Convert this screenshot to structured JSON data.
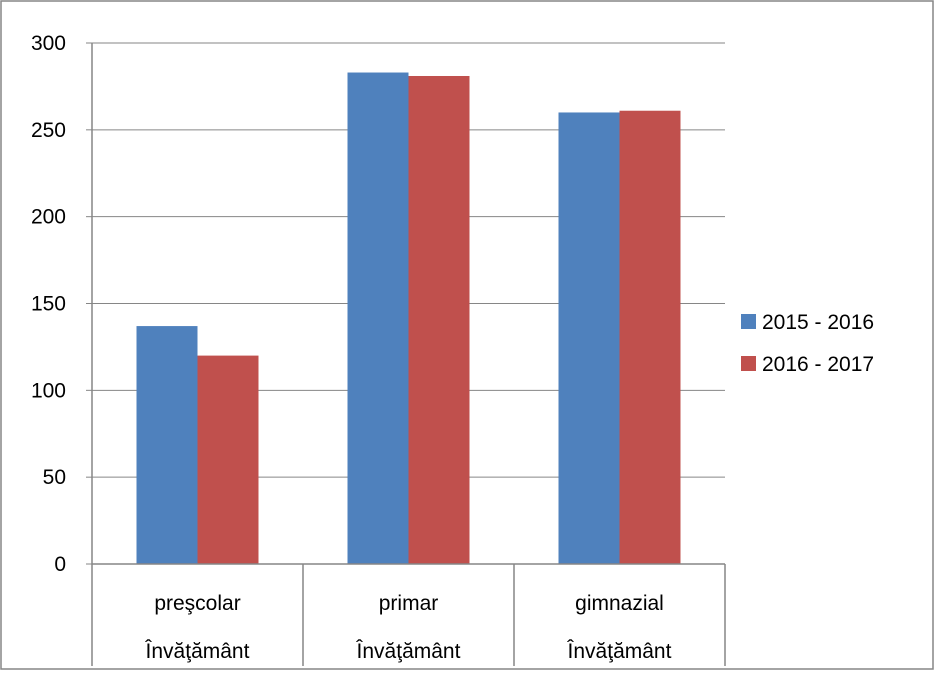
{
  "chart_data": {
    "type": "bar",
    "title": "",
    "xlabel": "",
    "ylabel": "",
    "categories": [
      {
        "label": "preşcolar",
        "group": "Învăţământ"
      },
      {
        "label": "primar",
        "group": "Învăţământ"
      },
      {
        "label": "gimnazial",
        "group": "Învăţământ"
      }
    ],
    "series": [
      {
        "name": "2015 - 2016",
        "color": "#4f81bd",
        "values": [
          137,
          283,
          260
        ]
      },
      {
        "name": "2016 - 2017",
        "color": "#c0504d",
        "values": [
          120,
          281,
          261
        ]
      }
    ],
    "ylim": [
      0,
      300
    ],
    "yticks": [
      "0",
      "50",
      "100",
      "150",
      "200",
      "250",
      "300"
    ],
    "grid": true,
    "legend_position": "right"
  }
}
